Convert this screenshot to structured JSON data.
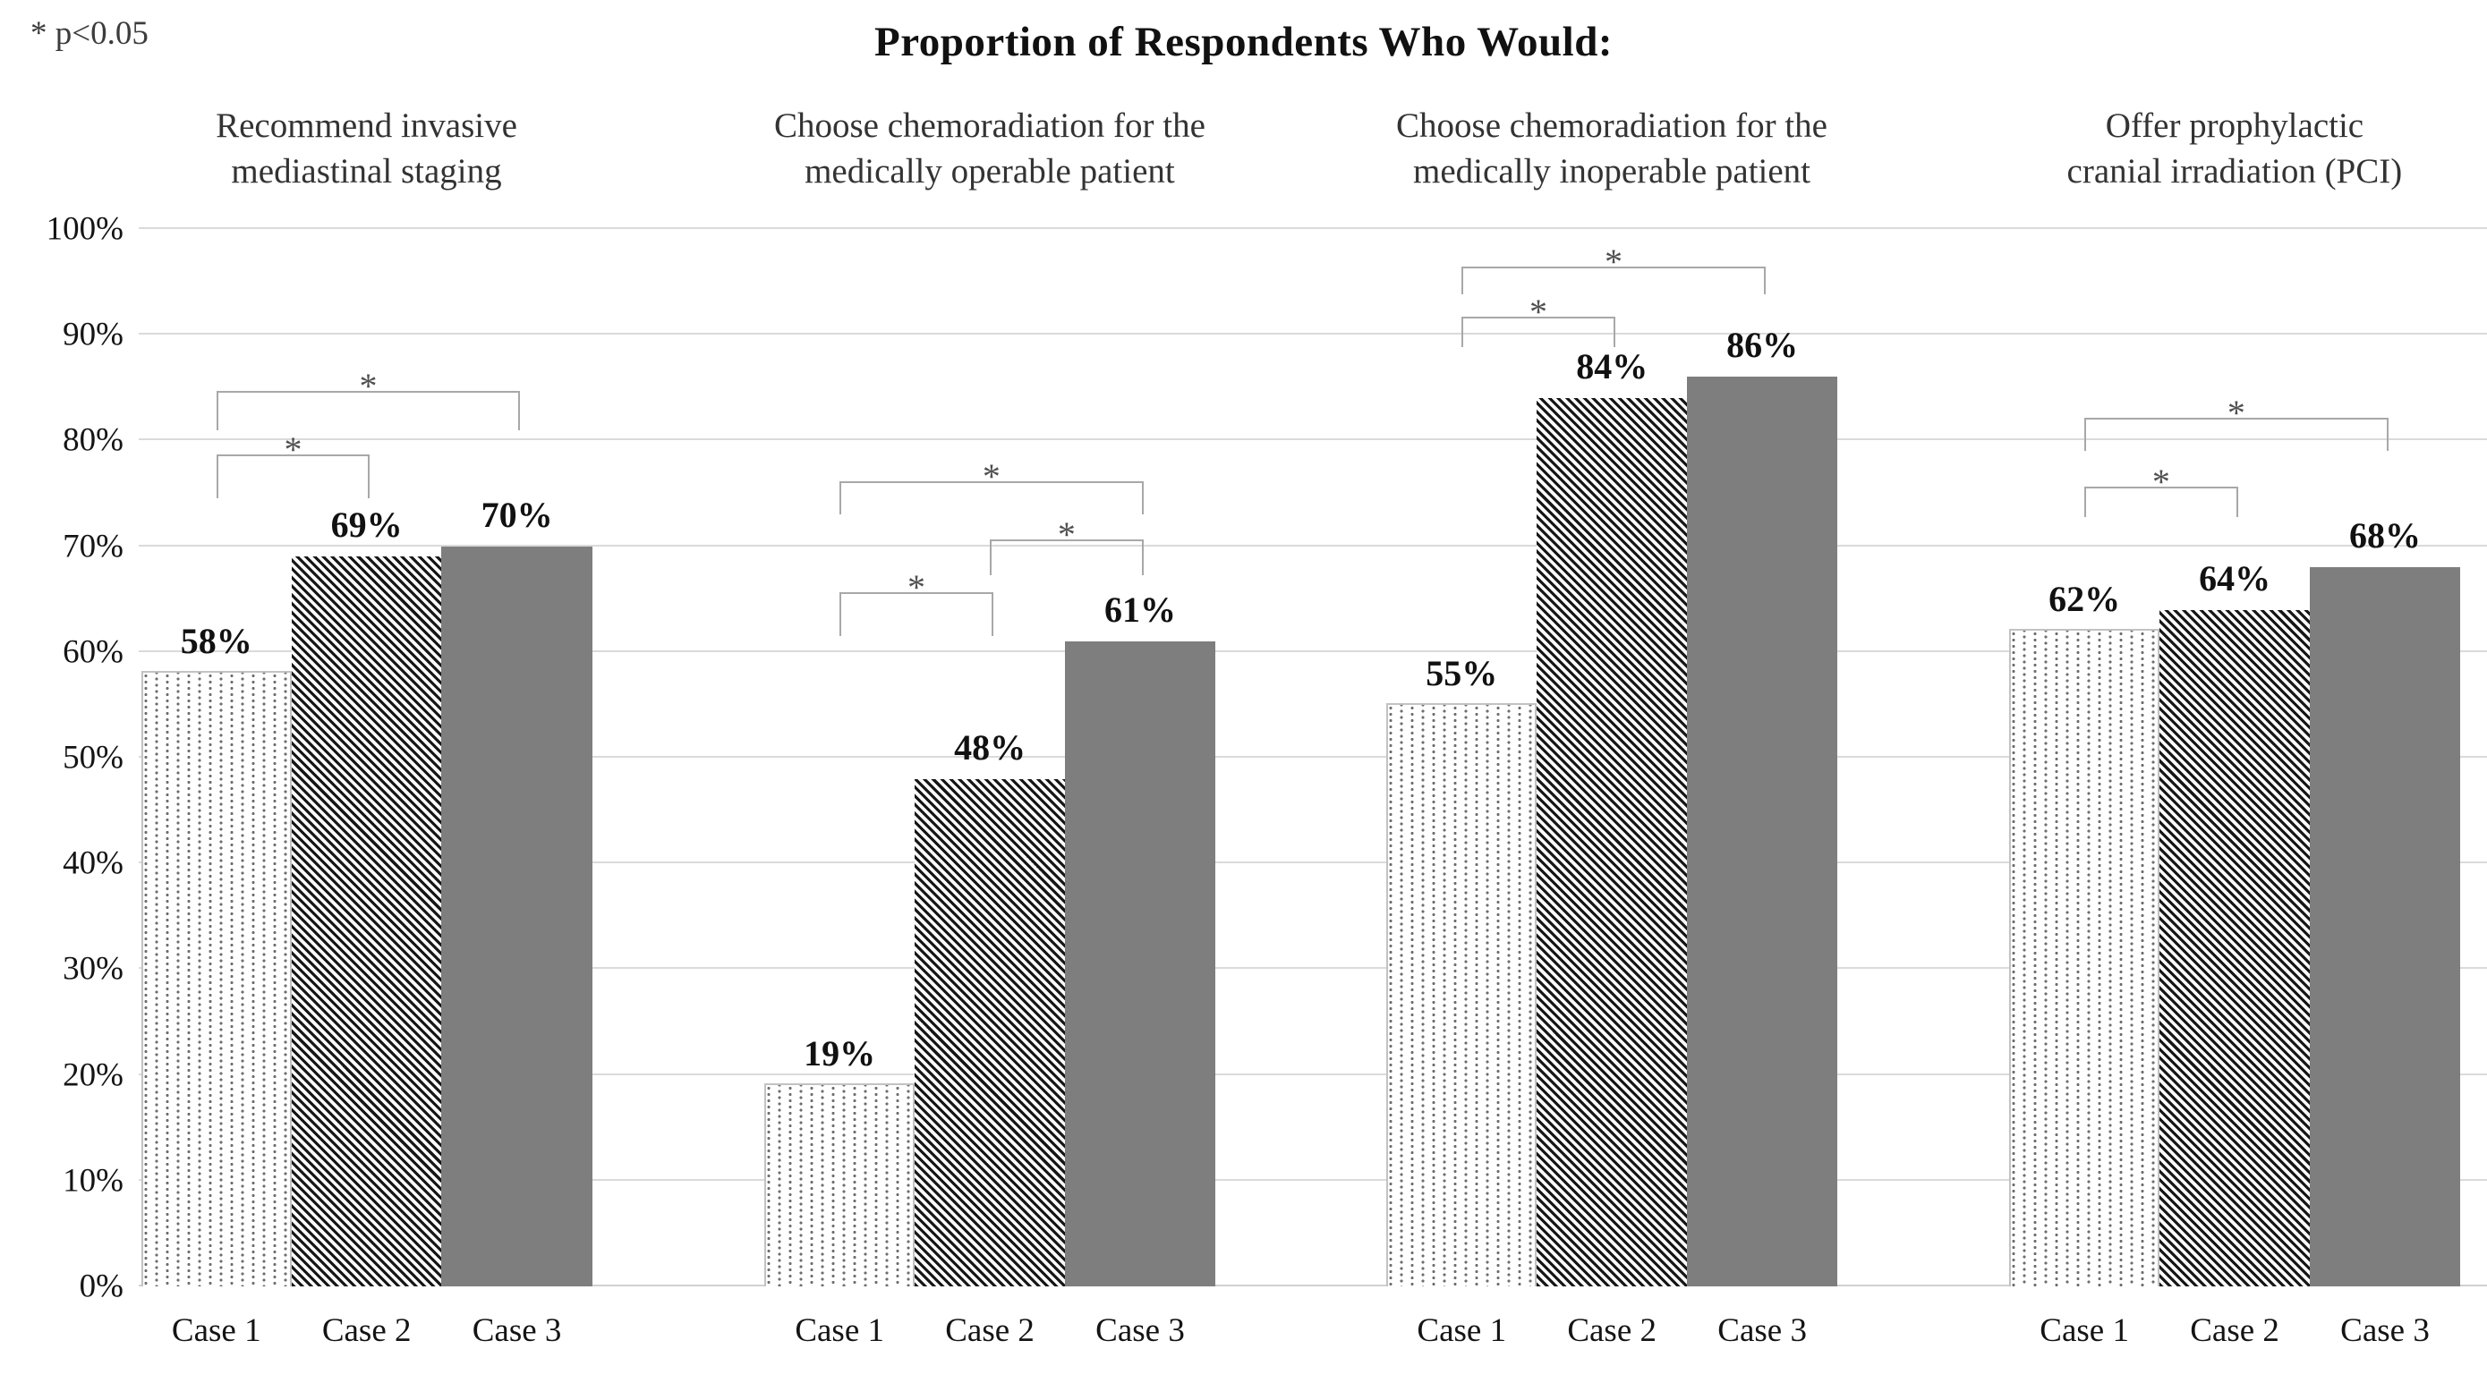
{
  "note": "* p<0.05",
  "title": "Proportion of Respondents Who Would:",
  "chart_data": {
    "type": "bar",
    "title": "Proportion of Respondents Who Would:",
    "significance_note": "* p<0.05",
    "ylabel": "",
    "xlabel": "",
    "ylim": [
      0,
      100
    ],
    "ytick_step": 10,
    "ytick_labels": [
      "0%",
      "10%",
      "20%",
      "30%",
      "40%",
      "50%",
      "60%",
      "70%",
      "80%",
      "90%",
      "100%"
    ],
    "grid": true,
    "legend_position": "none",
    "categories": [
      "Case 1",
      "Case 2",
      "Case 3"
    ],
    "patterns": [
      "dotted",
      "diagonal-hatch",
      "solid-gray"
    ],
    "groups": [
      {
        "label": "Recommend invasive mediastinal staging",
        "label_lines": [
          "Recommend invasive",
          "mediastinal staging"
        ],
        "values": [
          58,
          69,
          70
        ],
        "value_labels": [
          "58%",
          "69%",
          "70%"
        ],
        "significance_brackets": [
          {
            "from": 0,
            "to": 1,
            "label": "*",
            "top": 78.5,
            "tick_bottom": 74.5
          },
          {
            "from": 0,
            "to": 2,
            "label": "*",
            "top": 84.5,
            "tick_bottom": 81.0
          }
        ]
      },
      {
        "label": "Choose chemoradiation for the medically operable patient",
        "label_lines": [
          "Choose chemoradiation for the",
          "medically operable patient"
        ],
        "values": [
          19,
          48,
          61
        ],
        "value_labels": [
          "19%",
          "48%",
          "61%"
        ],
        "significance_brackets": [
          {
            "from": 0,
            "to": 1,
            "label": "*",
            "top": 65.5,
            "tick_bottom": 61.5
          },
          {
            "from": 1,
            "to": 2,
            "label": "*",
            "top": 70.5,
            "tick_bottom": 67.3
          },
          {
            "from": 0,
            "to": 2,
            "label": "*",
            "top": 76.0,
            "tick_bottom": 73.0
          }
        ]
      },
      {
        "label": "Choose chemoradiation for the medically inoperable patient",
        "label_lines": [
          "Choose chemoradiation for the",
          "medically inoperable patient"
        ],
        "values": [
          55,
          84,
          86
        ],
        "value_labels": [
          "55%",
          "84%",
          "86%"
        ],
        "significance_brackets": [
          {
            "from": 0,
            "to": 1,
            "label": "*",
            "top": 91.5,
            "tick_bottom": 88.8
          },
          {
            "from": 0,
            "to": 2,
            "label": "*",
            "top": 96.3,
            "tick_bottom": 93.8
          }
        ]
      },
      {
        "label": "Offer prophylactic cranial irradiation (PCI)",
        "label_lines": [
          "Offer prophylactic",
          "cranial irradiation (PCI)"
        ],
        "values": [
          62,
          64,
          68
        ],
        "value_labels": [
          "62%",
          "64%",
          "68%"
        ],
        "significance_brackets": [
          {
            "from": 0,
            "to": 1,
            "label": "*",
            "top": 75.5,
            "tick_bottom": 72.8
          },
          {
            "from": 0,
            "to": 2,
            "label": "*",
            "top": 82.0,
            "tick_bottom": 79.0
          }
        ]
      }
    ],
    "colors": {
      "solid_bar": "#7e7e7e",
      "hatch_line": "#161616",
      "dot": "#6e6e6e",
      "gridline": "#dadada",
      "bracket": "#a8a8a8",
      "asterisk": "#4f4f4f",
      "text": "#1a1a1a",
      "header_text": "#333333",
      "background": "#ffffff"
    }
  }
}
